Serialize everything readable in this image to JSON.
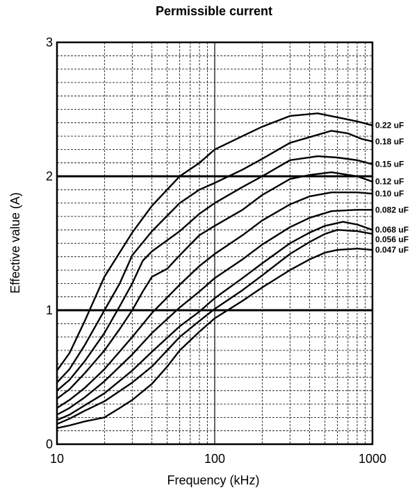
{
  "chart_data": {
    "type": "line",
    "title": "Permissible current",
    "xlabel": "Frequency (kHz)",
    "ylabel": "Effective value (A)",
    "x_scale": "log",
    "xlim": [
      10,
      1000
    ],
    "ylim": [
      0,
      3
    ],
    "x_ticks": [
      {
        "value": 10,
        "label": "10"
      },
      {
        "value": 100,
        "label": "100"
      },
      {
        "value": 1000,
        "label": "1000"
      }
    ],
    "y_ticks": [
      {
        "value": 0,
        "label": "0"
      },
      {
        "value": 1,
        "label": "1"
      },
      {
        "value": 2,
        "label": "2"
      },
      {
        "value": 3,
        "label": "3"
      }
    ],
    "grid": true,
    "reference_lines_y": [
      1,
      2
    ],
    "series": [
      {
        "name": "0.22 uF",
        "points": [
          [
            10,
            0.55
          ],
          [
            12,
            0.68
          ],
          [
            15,
            0.92
          ],
          [
            20,
            1.25
          ],
          [
            30,
            1.58
          ],
          [
            40,
            1.78
          ],
          [
            60,
            2.0
          ],
          [
            80,
            2.1
          ],
          [
            100,
            2.2
          ],
          [
            150,
            2.3
          ],
          [
            200,
            2.37
          ],
          [
            300,
            2.45
          ],
          [
            450,
            2.47
          ],
          [
            600,
            2.44
          ],
          [
            800,
            2.41
          ],
          [
            1000,
            2.38
          ]
        ]
      },
      {
        "name": "0.18 uF",
        "points": [
          [
            10,
            0.46
          ],
          [
            12,
            0.56
          ],
          [
            15,
            0.74
          ],
          [
            20,
            1.0
          ],
          [
            25,
            1.2
          ],
          [
            30,
            1.41
          ],
          [
            40,
            1.59
          ],
          [
            60,
            1.8
          ],
          [
            80,
            1.9
          ],
          [
            100,
            1.95
          ],
          [
            150,
            2.05
          ],
          [
            200,
            2.13
          ],
          [
            300,
            2.25
          ],
          [
            450,
            2.31
          ],
          [
            550,
            2.34
          ],
          [
            700,
            2.32
          ],
          [
            850,
            2.28
          ],
          [
            1000,
            2.26
          ]
        ]
      },
      {
        "name": "0.15 uF",
        "points": [
          [
            10,
            0.4
          ],
          [
            12,
            0.48
          ],
          [
            15,
            0.62
          ],
          [
            20,
            0.83
          ],
          [
            25,
            1.03
          ],
          [
            30,
            1.2
          ],
          [
            35,
            1.37
          ],
          [
            40,
            1.44
          ],
          [
            60,
            1.59
          ],
          [
            80,
            1.72
          ],
          [
            100,
            1.8
          ],
          [
            150,
            1.92
          ],
          [
            200,
            2.0
          ],
          [
            300,
            2.12
          ],
          [
            450,
            2.15
          ],
          [
            600,
            2.14
          ],
          [
            800,
            2.12
          ],
          [
            1000,
            2.09
          ]
        ]
      },
      {
        "name": "0.12 uF",
        "points": [
          [
            10,
            0.34
          ],
          [
            12,
            0.41
          ],
          [
            15,
            0.53
          ],
          [
            20,
            0.7
          ],
          [
            25,
            0.86
          ],
          [
            30,
            1.0
          ],
          [
            35,
            1.14
          ],
          [
            40,
            1.25
          ],
          [
            50,
            1.31
          ],
          [
            60,
            1.41
          ],
          [
            80,
            1.56
          ],
          [
            100,
            1.63
          ],
          [
            150,
            1.75
          ],
          [
            200,
            1.86
          ],
          [
            300,
            1.98
          ],
          [
            400,
            2.01
          ],
          [
            550,
            2.03
          ],
          [
            800,
            2.0
          ],
          [
            1000,
            1.96
          ]
        ]
      },
      {
        "name": "0.10 uF",
        "points": [
          [
            10,
            0.27
          ],
          [
            12,
            0.33
          ],
          [
            15,
            0.42
          ],
          [
            20,
            0.56
          ],
          [
            30,
            0.8
          ],
          [
            40,
            0.98
          ],
          [
            60,
            1.19
          ],
          [
            80,
            1.33
          ],
          [
            100,
            1.42
          ],
          [
            150,
            1.56
          ],
          [
            200,
            1.67
          ],
          [
            300,
            1.79
          ],
          [
            400,
            1.85
          ],
          [
            550,
            1.88
          ],
          [
            800,
            1.88
          ],
          [
            1000,
            1.87
          ]
        ]
      },
      {
        "name": "0.082 uF",
        "points": [
          [
            10,
            0.22
          ],
          [
            12,
            0.27
          ],
          [
            15,
            0.35
          ],
          [
            20,
            0.47
          ],
          [
            30,
            0.67
          ],
          [
            40,
            0.83
          ],
          [
            60,
            1.02
          ],
          [
            80,
            1.14
          ],
          [
            100,
            1.24
          ],
          [
            150,
            1.38
          ],
          [
            200,
            1.49
          ],
          [
            300,
            1.62
          ],
          [
            400,
            1.69
          ],
          [
            550,
            1.74
          ],
          [
            800,
            1.75
          ],
          [
            1000,
            1.75
          ]
        ]
      },
      {
        "name": "0.068 uF",
        "points": [
          [
            10,
            0.18
          ],
          [
            12,
            0.22
          ],
          [
            15,
            0.29
          ],
          [
            20,
            0.38
          ],
          [
            30,
            0.55
          ],
          [
            40,
            0.69
          ],
          [
            60,
            0.88
          ],
          [
            80,
            0.99
          ],
          [
            100,
            1.09
          ],
          [
            150,
            1.24
          ],
          [
            200,
            1.35
          ],
          [
            300,
            1.5
          ],
          [
            400,
            1.58
          ],
          [
            500,
            1.63
          ],
          [
            650,
            1.66
          ],
          [
            800,
            1.64
          ],
          [
            1000,
            1.6
          ]
        ]
      },
      {
        "name": "0.056 uF",
        "points": [
          [
            10,
            0.15
          ],
          [
            12,
            0.19
          ],
          [
            15,
            0.25
          ],
          [
            20,
            0.32
          ],
          [
            30,
            0.46
          ],
          [
            40,
            0.58
          ],
          [
            60,
            0.8
          ],
          [
            80,
            0.92
          ],
          [
            100,
            1.01
          ],
          [
            150,
            1.15
          ],
          [
            200,
            1.26
          ],
          [
            300,
            1.42
          ],
          [
            400,
            1.51
          ],
          [
            500,
            1.57
          ],
          [
            600,
            1.6
          ],
          [
            800,
            1.59
          ],
          [
            1000,
            1.57
          ]
        ]
      },
      {
        "name": "0.047 uF",
        "points": [
          [
            10,
            0.12
          ],
          [
            12,
            0.14
          ],
          [
            15,
            0.17
          ],
          [
            20,
            0.2
          ],
          [
            25,
            0.27
          ],
          [
            30,
            0.33
          ],
          [
            40,
            0.45
          ],
          [
            50,
            0.58
          ],
          [
            60,
            0.7
          ],
          [
            80,
            0.84
          ],
          [
            100,
            0.94
          ],
          [
            150,
            1.07
          ],
          [
            200,
            1.17
          ],
          [
            300,
            1.3
          ],
          [
            400,
            1.38
          ],
          [
            500,
            1.43
          ],
          [
            600,
            1.45
          ],
          [
            800,
            1.46
          ],
          [
            1000,
            1.45
          ]
        ]
      }
    ]
  }
}
